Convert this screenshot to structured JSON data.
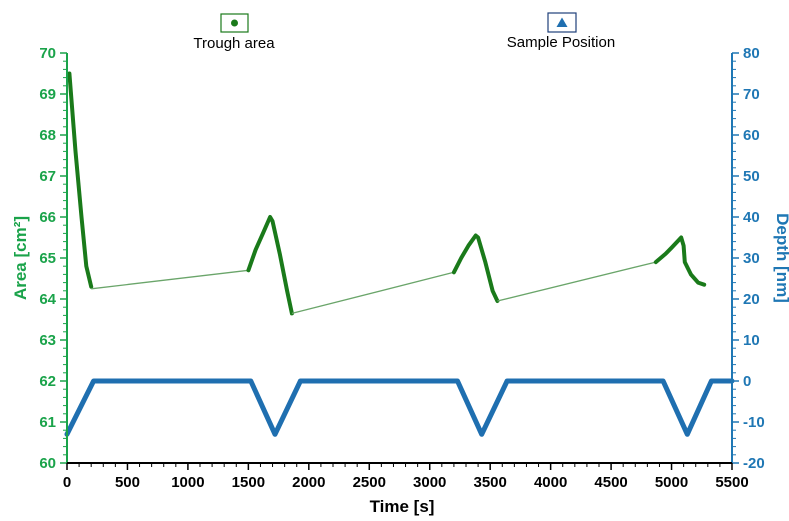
{
  "chart_data": {
    "type": "line",
    "x_axis": {
      "label": "Time [s]",
      "range": [
        0,
        5500
      ],
      "ticks": [
        0,
        500,
        1000,
        1500,
        2000,
        2500,
        3000,
        3500,
        4000,
        4500,
        5000,
        5500
      ]
    },
    "y_left_axis": {
      "label": "Area [cm²]",
      "range": [
        60,
        70
      ],
      "ticks": [
        60,
        61,
        62,
        63,
        64,
        65,
        66,
        67,
        68,
        69,
        70
      ],
      "color": "#1aa34a"
    },
    "y_right_axis": {
      "label": "Depth [nm]",
      "range": [
        -20,
        80
      ],
      "ticks": [
        -20,
        -10,
        0,
        10,
        20,
        30,
        40,
        50,
        60,
        70,
        80
      ],
      "color": "#1f77b4"
    },
    "legend": {
      "placement": "top"
    },
    "series": [
      {
        "name": "Trough area",
        "axis": "left",
        "color": "#1a7a1a",
        "marker": "circle",
        "segments": [
          {
            "style": "dense",
            "points": [
              [
                20,
                69.5
              ],
              [
                70,
                67.6
              ],
              [
                120,
                66.0
              ],
              [
                160,
                64.8
              ],
              [
                200,
                64.3
              ]
            ]
          },
          {
            "style": "thin",
            "points": [
              [
                200,
                64.25
              ],
              [
                1500,
                64.7
              ]
            ]
          },
          {
            "style": "dense",
            "points": [
              [
                1500,
                64.7
              ],
              [
                1560,
                65.2
              ],
              [
                1620,
                65.6
              ],
              [
                1680,
                66.0
              ],
              [
                1700,
                65.9
              ],
              [
                1760,
                65.1
              ],
              [
                1820,
                64.2
              ],
              [
                1860,
                63.65
              ]
            ]
          },
          {
            "style": "thin",
            "points": [
              [
                1860,
                63.65
              ],
              [
                3200,
                64.65
              ]
            ]
          },
          {
            "style": "dense",
            "points": [
              [
                3200,
                64.65
              ],
              [
                3260,
                65.0
              ],
              [
                3320,
                65.3
              ],
              [
                3380,
                65.55
              ],
              [
                3400,
                65.5
              ],
              [
                3460,
                64.9
              ],
              [
                3520,
                64.2
              ],
              [
                3560,
                63.95
              ]
            ]
          },
          {
            "style": "thin",
            "points": [
              [
                3560,
                63.95
              ],
              [
                4870,
                64.9
              ]
            ]
          },
          {
            "style": "dense",
            "points": [
              [
                4870,
                64.9
              ],
              [
                4950,
                65.1
              ],
              [
                5000,
                65.25
              ],
              [
                5080,
                65.5
              ],
              [
                5100,
                65.3
              ],
              [
                5110,
                64.9
              ],
              [
                5160,
                64.6
              ],
              [
                5220,
                64.4
              ],
              [
                5270,
                64.35
              ]
            ]
          }
        ]
      },
      {
        "name": "Sample Position",
        "axis": "right",
        "color": "#1f6fb0",
        "marker": "triangle",
        "points": [
          [
            0,
            -13
          ],
          [
            220,
            0
          ],
          [
            1520,
            0
          ],
          [
            1720,
            -13
          ],
          [
            1930,
            0
          ],
          [
            3230,
            0
          ],
          [
            3430,
            -13
          ],
          [
            3640,
            0
          ],
          [
            4930,
            0
          ],
          [
            5130,
            -13
          ],
          [
            5330,
            0
          ],
          [
            5500,
            0
          ]
        ]
      }
    ]
  }
}
